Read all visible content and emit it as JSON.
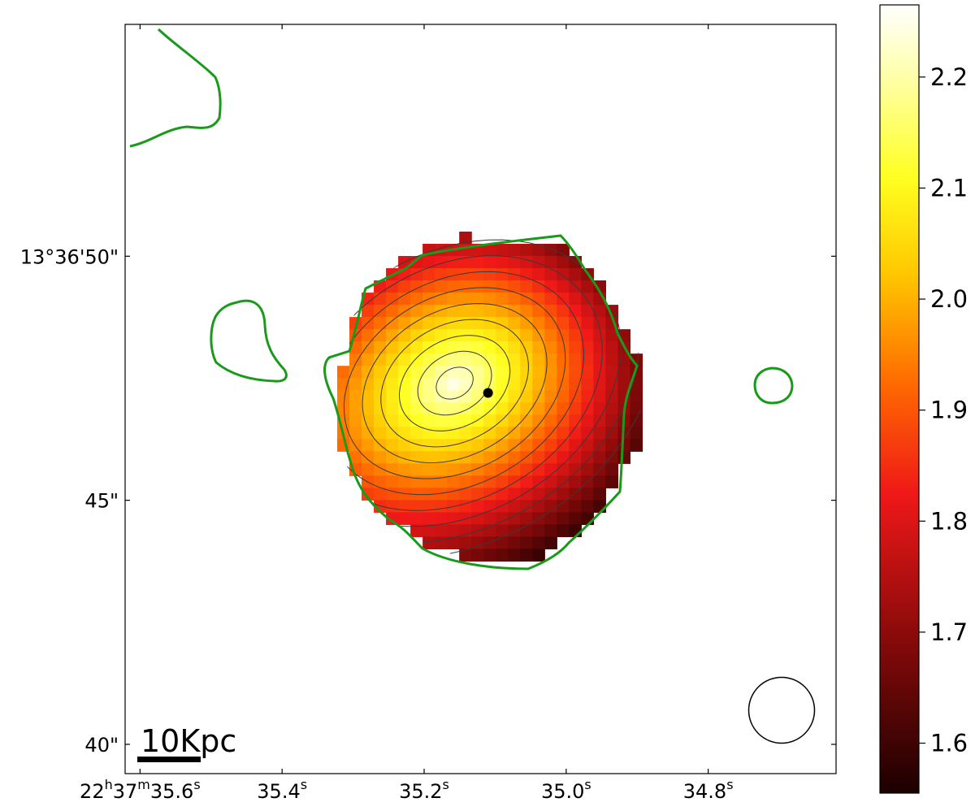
{
  "chart_data": {
    "type": "heatmap",
    "colormap": "hot",
    "x_ticks": [
      {
        "ra_s": 35.6,
        "text": "22h37m35.6s",
        "hours": "22",
        "minutes": "37",
        "seconds": "35.6"
      },
      {
        "ra_s": 35.4,
        "text": "35.4s",
        "seconds": "35.4"
      },
      {
        "ra_s": 35.2,
        "text": "35.2s",
        "seconds": "35.2"
      },
      {
        "ra_s": 35.0,
        "text": "35.0s",
        "seconds": "35.0"
      },
      {
        "ra_s": 34.8,
        "text": "34.8s",
        "seconds": "34.8"
      }
    ],
    "y_ticks": [
      {
        "dec_arcsec": 50,
        "text": "13°36'50\""
      },
      {
        "dec_arcsec": 45,
        "text": "45\""
      },
      {
        "dec_arcsec": 40,
        "text": "40\""
      }
    ],
    "x_range_ra_s": [
      35.621,
      34.62
    ],
    "y_range_dec_arcsec": [
      39.4,
      54.75
    ],
    "colorbar": {
      "range": [
        1.555,
        2.265
      ],
      "ticks": [
        {
          "value": 2.2,
          "label": "2.2"
        },
        {
          "value": 2.1,
          "label": "2.1"
        },
        {
          "value": 2.0,
          "label": "2.0"
        },
        {
          "value": 1.9,
          "label": "1.9"
        },
        {
          "value": 1.8,
          "label": "1.8"
        },
        {
          "value": 1.7,
          "label": "1.7"
        },
        {
          "value": 1.6,
          "label": "1.6"
        }
      ]
    },
    "map": {
      "peak_value": 2.25,
      "peak_position": {
        "ra_s": 35.157,
        "dec_arcsec": 47.4
      },
      "min_value": 1.56,
      "contour_levels": [
        2.2,
        2.15,
        2.1,
        2.05,
        2.0,
        1.95,
        1.9,
        1.85,
        1.8,
        1.75,
        1.7
      ],
      "grid": "pixelated, approx. 0.25 arcsec pixels",
      "nucleus_marker": {
        "ra_s": 35.11,
        "dec_arcsec": 47.2,
        "color": "#000000"
      }
    },
    "scale_bar": {
      "label": "10Kpc"
    },
    "beam": {
      "shape": "circle",
      "diameter_arcsec": 1.35
    },
    "outline_color": "#1a9a1a",
    "contour_color": "#3a3a3a",
    "grid": false,
    "legend": "none"
  }
}
